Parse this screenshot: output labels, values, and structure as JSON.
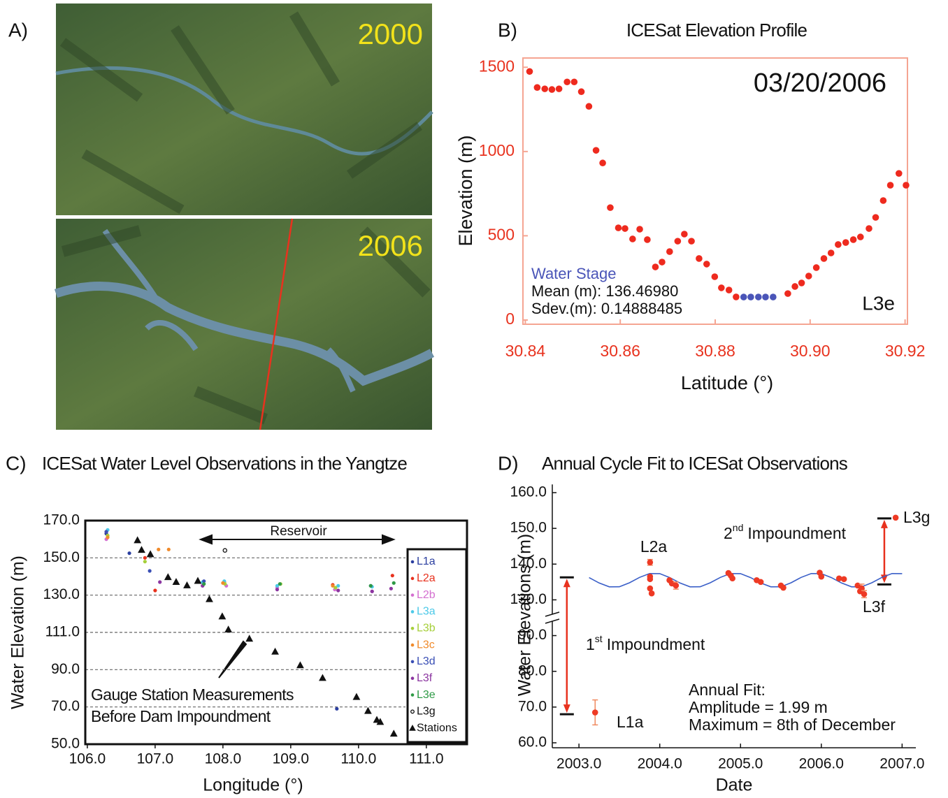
{
  "images": {
    "label": "A)",
    "years": [
      "2000",
      "2006"
    ]
  },
  "chart_data": [
    {
      "type": "scatter",
      "panel_label": "B)",
      "title": "ICESat Elevation Profile",
      "x_label": "Latitude (°)",
      "y_label": "Elevation (m)",
      "xlim": [
        30.8395,
        30.9205
      ],
      "ylim": [
        -25,
        1555
      ],
      "xticks": [
        30.84,
        30.86,
        30.88,
        {
          "value": 30.9,
          "label": "30.90"
        },
        30.92
      ],
      "yticks": [
        0,
        500,
        1000,
        1500
      ],
      "series": [
        {
          "color": "#ee2a1e",
          "marker": "dot",
          "x": [
            30.8409,
            30.8425,
            30.8441,
            30.8456,
            30.8471,
            30.8488,
            30.8503,
            30.8518,
            30.8534,
            30.8549,
            30.8563,
            30.8579,
            30.8596,
            30.861,
            30.8626,
            30.8641,
            30.8657,
            30.8674,
            30.8688,
            30.8704,
            30.8721,
            30.8735,
            30.875,
            30.8766,
            30.8782,
            30.8799,
            30.8813,
            30.8829,
            30.8844,
            30.8953,
            30.8968,
            30.8982,
            30.8997,
            30.9013,
            30.9029,
            30.9044,
            30.9059,
            30.9075,
            30.9091,
            30.9106,
            30.9124,
            30.9138,
            30.9154,
            30.9169,
            30.9187,
            30.9202
          ],
          "values": [
            1475,
            1380,
            1372,
            1368,
            1372,
            1413,
            1413,
            1355,
            1268,
            1007,
            932,
            667,
            547,
            543,
            481,
            539,
            477,
            315,
            344,
            406,
            468,
            510,
            468,
            365,
            332,
            257,
            191,
            178,
            137,
            157,
            199,
            220,
            261,
            311,
            365,
            398,
            448,
            460,
            477,
            493,
            543,
            609,
            709,
            800,
            870,
            800
          ]
        },
        {
          "name": "Water Stage",
          "color": "#4a55b8",
          "marker": "dot",
          "x": [
            30.886,
            30.8875,
            30.8891,
            30.8906,
            30.8922
          ],
          "values": [
            136.3,
            136.5,
            136.6,
            136.5,
            136.4
          ]
        }
      ],
      "annotations": {
        "date": "03/20/2006",
        "mean": "Mean (m): 136.46980",
        "sdev": "Sdev.(m): 0.14888485",
        "track": "L3e"
      }
    },
    {
      "type": "scatter",
      "panel_label": "C)",
      "title": "ICESat Water Level Observations in the Yangtze",
      "x_label": "Longitude (°)",
      "y_label": "Water Elevation (m)",
      "xlim": [
        105.97,
        111.6
      ],
      "ylim": [
        50,
        170
      ],
      "y_scale": "tick-spaced",
      "grid": true,
      "xticks": [
        {
          "value": 106,
          "label": "106.0"
        },
        {
          "value": 107,
          "label": "107.0"
        },
        {
          "value": 108,
          "label": "108.0"
        },
        {
          "value": 109,
          "label": "109.0"
        },
        {
          "value": 110,
          "label": "110.0"
        },
        {
          "value": 111,
          "label": "111.0"
        }
      ],
      "yticks": [
        {
          "value": 50,
          "label": "50.0"
        },
        {
          "value": 70,
          "label": "70.0"
        },
        {
          "value": 90,
          "label": "90.0"
        },
        {
          "value": 111,
          "label": "111.0"
        },
        {
          "value": 130,
          "label": "130.0"
        },
        {
          "value": 150,
          "label": "150.0"
        },
        {
          "value": 170,
          "label": "170.0"
        }
      ],
      "series": [
        {
          "name": "L1a",
          "color": "#2b3fa0",
          "marker": "dot",
          "x": [
            106.28,
            106.62,
            109.68
          ],
          "values": [
            163,
            152.5,
            69
          ]
        },
        {
          "name": "L2a",
          "color": "#e8321e",
          "marker": "dot",
          "x": [
            106.28,
            106.85,
            107.0,
            108.02,
            109.62,
            110.5
          ],
          "values": [
            164,
            150,
            132.5,
            137,
            135.5,
            140.5
          ]
        },
        {
          "name": "L2b",
          "color": "#d46fd0",
          "marker": "dot",
          "x": [
            106.28,
            107.7,
            108.05,
            108.8,
            109.65,
            110.2
          ],
          "values": [
            160,
            135,
            135,
            134,
            133,
            132
          ]
        },
        {
          "name": "L3a",
          "color": "#4cc9e8",
          "marker": "dot",
          "x": [
            106.3,
            107.7,
            108.02,
            108.8,
            109.7,
            110.2
          ],
          "values": [
            165,
            137,
            137.5,
            135,
            135,
            134.5
          ]
        },
        {
          "name": "L3b",
          "color": "#a6cf3a",
          "marker": "dot",
          "x": [
            106.3,
            106.85,
            108.03,
            108.85,
            109.66
          ],
          "values": [
            162,
            148,
            136,
            136,
            134
          ]
        },
        {
          "name": "L3c",
          "color": "#f08a2a",
          "marker": "dot",
          "x": [
            106.3,
            107.05,
            107.2,
            108.0,
            109.62
          ],
          "values": [
            161,
            154.5,
            154.5,
            136.5,
            135
          ]
        },
        {
          "name": "L3d",
          "color": "#3a4fb5",
          "marker": "dot",
          "x": [
            106.28,
            106.92,
            107.72,
            110.18
          ],
          "values": [
            164,
            143,
            137.5,
            135
          ]
        },
        {
          "name": "L3f",
          "color": "#8b35a0",
          "marker": "dot",
          "x": [
            107.07,
            107.7,
            108.8,
            109.7,
            110.2,
            110.48
          ],
          "values": [
            137,
            135,
            133,
            132.5,
            132,
            133.5
          ]
        },
        {
          "name": "L3e",
          "color": "#2e9a45",
          "marker": "dot",
          "x": [
            107.72,
            108.84,
            110.18,
            110.52
          ],
          "values": [
            136,
            136,
            135,
            136.5
          ]
        },
        {
          "name": "L3g",
          "color": "#111111",
          "marker": "circle-open",
          "x": [
            108.03
          ],
          "values": [
            154
          ]
        },
        {
          "name": "Stations",
          "color": "#111111",
          "marker": "triangle",
          "x": [
            106.74,
            106.8,
            106.93,
            107.19,
            107.31,
            107.47,
            107.63,
            107.8,
            107.99,
            108.08,
            108.39,
            108.77,
            109.14,
            109.47,
            109.97,
            110.14,
            110.27,
            110.32,
            110.52
          ],
          "values": [
            159.4,
            154.2,
            151.9,
            139.6,
            137.0,
            135.2,
            137.6,
            127.9,
            119.1,
            112.4,
            107.4,
            100.1,
            92.4,
            85.5,
            75.3,
            67.8,
            63.0,
            61.9,
            55.6
          ]
        }
      ],
      "annotations": {
        "reservoir": "Reservoir",
        "gauge1": "Gauge Station Measurements",
        "gauge2": "Before Dam Impoundment"
      }
    },
    {
      "type": "line",
      "panel_label": "D)",
      "title": "Annual Cycle Fit to ICESat Observations",
      "x_label": "Date",
      "y_label": "Water Elevations (m)",
      "xlim": [
        2002.67,
        2007.17
      ],
      "ylim": [
        58.6,
        162.3
      ],
      "y_scale": "tick-spaced",
      "xticks": [
        {
          "value": 2003,
          "label": "2003.0"
        },
        {
          "value": 2004,
          "label": "2004.0"
        },
        {
          "value": 2005,
          "label": "2005.0"
        },
        {
          "value": 2006,
          "label": "2006.0"
        },
        {
          "value": 2007,
          "label": "2007.0"
        }
      ],
      "yticks": [
        {
          "value": 60,
          "label": "60.0"
        },
        {
          "value": 70,
          "label": "70.0"
        },
        {
          "value": 80,
          "label": "80.0"
        },
        {
          "value": 90,
          "label": "90.0"
        },
        {
          "value": 130,
          "label": "130.0"
        },
        {
          "value": 140,
          "label": "140.0"
        },
        {
          "value": 150,
          "label": "150.0"
        },
        {
          "value": 160,
          "label": "160.0"
        }
      ],
      "series": [
        {
          "mode": "line",
          "color": "#3a5fc8",
          "x": [
            2003.125,
            2003.25,
            2003.375,
            2003.5,
            2003.625,
            2003.75,
            2003.875,
            2004,
            2004.125,
            2004.25,
            2004.375,
            2004.5,
            2004.625,
            2004.75,
            2004.875,
            2005,
            2005.125,
            2005.25,
            2005.375,
            2005.5,
            2005.625,
            2005.75,
            2005.875,
            2006,
            2006.125,
            2006.25,
            2006.375,
            2006.5,
            2006.625,
            2006.75,
            2006.875,
            2007
          ],
          "values": [
            136.23,
            134.71,
            133.65,
            133.67,
            134.77,
            136.29,
            137.35,
            137.33,
            136.23,
            134.71,
            133.65,
            133.67,
            134.77,
            136.29,
            137.35,
            137.33,
            136.23,
            134.71,
            133.65,
            133.67,
            134.77,
            136.29,
            137.35,
            137.33,
            136.23,
            134.71,
            133.65,
            133.67,
            134.77,
            136.29,
            137.35,
            137.33
          ]
        },
        {
          "mode": "markers",
          "color": "#ee3a24",
          "x": [
            2003.2,
            2003.88,
            2003.88,
            2003.88,
            2003.88,
            2003.9,
            2004.12,
            2004.15,
            2004.2,
            2004.85,
            2004.88,
            2004.9,
            2005.2,
            2005.25,
            2005.5,
            2005.53,
            2005.98,
            2006.0,
            2006.22,
            2006.28,
            2006.45,
            2006.5,
            2006.48,
            2006.53,
            2006.92
          ],
          "values": [
            68.5,
            140.5,
            136.5,
            135.8,
            133.2,
            131.8,
            135.5,
            134.6,
            134,
            137.5,
            136.8,
            136,
            135.5,
            135,
            134,
            133.4,
            137.6,
            136.5,
            136,
            135.8,
            134,
            133.2,
            132.4,
            131.6,
            153
          ],
          "errors": [
            3.5,
            0.8,
            null,
            null,
            null,
            null,
            null,
            null,
            1,
            null,
            null,
            null,
            null,
            null,
            null,
            null,
            null,
            null,
            null,
            null,
            null,
            1.2,
            null,
            1,
            null
          ]
        }
      ],
      "impoundments": [
        {
          "x": 2002.85,
          "from": 68,
          "to": 136.3
        },
        {
          "x": 2006.78,
          "from": 134.3,
          "to": 152.8
        }
      ],
      "annotations": {
        "l2a": "L2a",
        "l3g": "L3g",
        "l3f": "L3f",
        "l1a": "L1a",
        "first": {
          "num": "1",
          "sup": "st",
          "text": "Impoundment"
        },
        "second": {
          "num": "2",
          "sup": "nd",
          "text": "Impoundment"
        },
        "fit": "Annual Fit:",
        "amplitude": "Amplitude = 1.99 m",
        "maximum": "Maximum = 8th of December"
      }
    }
  ]
}
